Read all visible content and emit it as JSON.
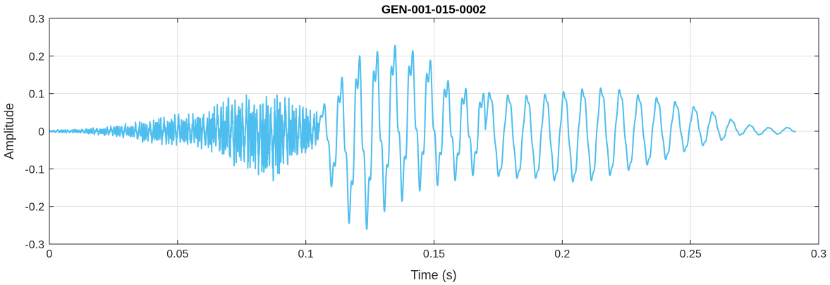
{
  "chart_data": {
    "type": "line",
    "title": "GEN-001-015-0002",
    "xlabel": "Time (s)",
    "ylabel": "Amplitude",
    "xlim": [
      0,
      0.3
    ],
    "ylim": [
      -0.3,
      0.3
    ],
    "x_ticks": [
      "0",
      "0.05",
      "0.1",
      "0.15",
      "0.2",
      "0.25",
      "0.3"
    ],
    "y_ticks": [
      "0.3",
      "0.2",
      "0.1",
      "0",
      "-0.1",
      "-0.2",
      "-0.3"
    ],
    "grid": true,
    "line_color": "#4DBEEE",
    "series": [
      {
        "description": "speech waveform",
        "duration_s": 0.291,
        "envelope_t": [
          0,
          0.01,
          0.02,
          0.03,
          0.04,
          0.05,
          0.06,
          0.07,
          0.08,
          0.085,
          0.09,
          0.095,
          0.1,
          0.105,
          0.11,
          0.115,
          0.12,
          0.125,
          0.13,
          0.135,
          0.14,
          0.145,
          0.15,
          0.155,
          0.16,
          0.165,
          0.17,
          0.18,
          0.19,
          0.2,
          0.21,
          0.22,
          0.23,
          0.24,
          0.25,
          0.26,
          0.27,
          0.28,
          0.29,
          0.291
        ],
        "envelope_max": [
          0.003,
          0.005,
          0.01,
          0.02,
          0.03,
          0.045,
          0.05,
          0.09,
          0.1,
          0.1,
          0.11,
          0.08,
          0.06,
          0.05,
          0.12,
          0.17,
          0.22,
          0.24,
          0.23,
          0.25,
          0.24,
          0.22,
          0.2,
          0.15,
          0.13,
          0.12,
          0.11,
          0.1,
          0.1,
          0.11,
          0.12,
          0.12,
          0.1,
          0.09,
          0.07,
          0.05,
          0.02,
          0.01,
          0.01,
          0.0
        ],
        "envelope_min": [
          -0.003,
          -0.005,
          -0.01,
          -0.02,
          -0.035,
          -0.04,
          -0.05,
          -0.09,
          -0.1,
          -0.15,
          -0.11,
          -0.09,
          -0.07,
          -0.05,
          -0.15,
          -0.23,
          -0.28,
          -0.26,
          -0.22,
          -0.2,
          -0.18,
          -0.16,
          -0.15,
          -0.14,
          -0.13,
          -0.12,
          -0.12,
          -0.13,
          -0.13,
          -0.14,
          -0.14,
          -0.12,
          -0.1,
          -0.08,
          -0.05,
          -0.03,
          -0.01,
          -0.01,
          -0.005,
          0.0
        ]
      }
    ]
  }
}
